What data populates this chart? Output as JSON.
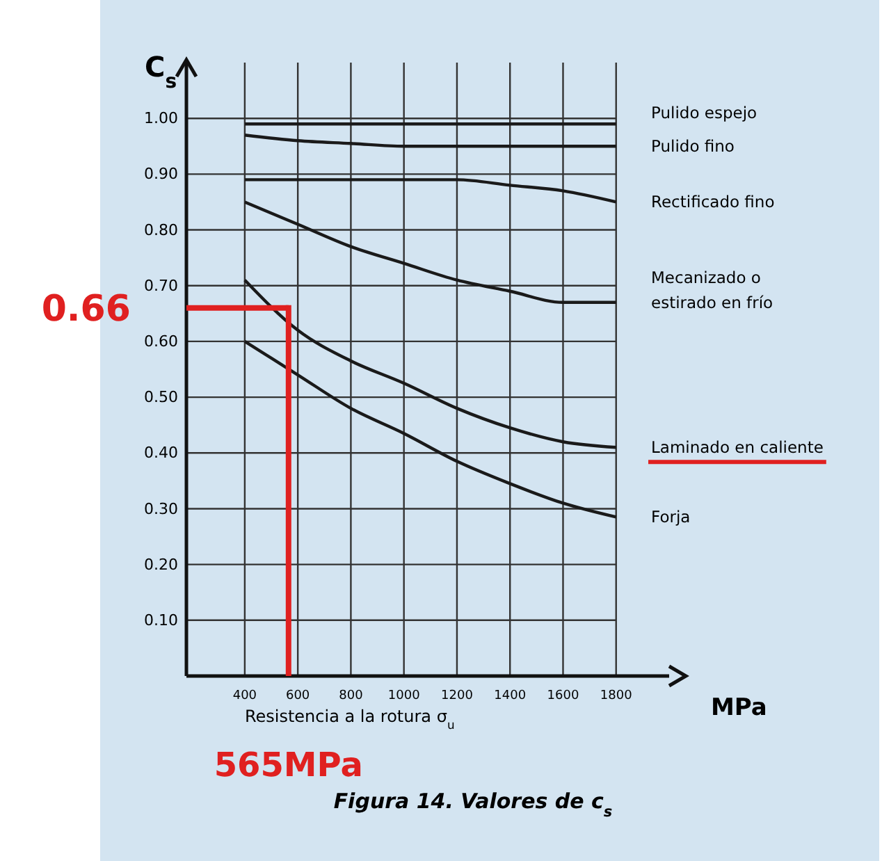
{
  "chart_data": {
    "type": "line",
    "ylabel": "C$_{s}$",
    "xlabel": "Resistencia a la rotura σ$_{u}$",
    "annotations": [
      "MPa",
      "Figura 14. Valores de c$_{s}$"
    ],
    "x": [
      400,
      600,
      800,
      1000,
      1200,
      1400,
      1600,
      1800
    ],
    "xlim": [
      180,
      2000
    ],
    "xticks": [
      400,
      600,
      800,
      1000,
      1200,
      1400,
      1600,
      1800
    ],
    "ylim": [
      0,
      1.1
    ],
    "yticks": [
      {
        "value": 0.1,
        "label": "0.10"
      },
      {
        "value": 0.2,
        "label": "0.20"
      },
      {
        "value": 0.3,
        "label": "0.30"
      },
      {
        "value": 0.4,
        "label": "0.40"
      },
      {
        "value": 0.5,
        "label": "0.50"
      },
      {
        "value": 0.6,
        "label": "0.60"
      },
      {
        "value": 0.7,
        "label": "0.70"
      },
      {
        "value": 0.8,
        "label": "0.80"
      },
      {
        "value": 0.9,
        "label": "0.90"
      },
      {
        "value": 1.0,
        "label": "1.00"
      }
    ],
    "grid": true,
    "legend": false,
    "marker": "none",
    "line_style": "solid",
    "series": [
      {
        "name": "Pulido espejo",
        "color": "#1a1a1a",
        "values": [
          0.99,
          0.99,
          0.99,
          0.99,
          0.99,
          0.99,
          0.99,
          0.99
        ]
      },
      {
        "name": "Pulido fino",
        "color": "#1a1a1a",
        "values": [
          0.97,
          0.96,
          0.955,
          0.95,
          0.95,
          0.95,
          0.95,
          0.95
        ]
      },
      {
        "name": "Rectificado fino",
        "color": "#1a1a1a",
        "values": [
          0.89,
          0.89,
          0.89,
          0.89,
          0.89,
          0.88,
          0.87,
          0.85
        ]
      },
      {
        "name": "Mecanizado o\nestirado en frío",
        "color": "#1a1a1a",
        "values": [
          0.85,
          0.81,
          0.77,
          0.74,
          0.71,
          0.69,
          0.67,
          0.67
        ]
      },
      {
        "name": "Laminado en caliente",
        "color": "#1a1a1a",
        "values": [
          0.71,
          0.62,
          0.565,
          0.525,
          0.48,
          0.445,
          0.42,
          0.41
        ]
      },
      {
        "name": "Forja",
        "color": "#1a1a1a",
        "values": [
          0.6,
          0.54,
          0.48,
          0.435,
          0.385,
          0.345,
          0.31,
          0.285
        ]
      }
    ],
    "ref_lines": [
      {
        "axis": "y",
        "value": 0.66,
        "label": "0.66",
        "color": "#e02020"
      },
      {
        "axis": "x",
        "value": 565,
        "label": "565MPa",
        "color": "#e02020"
      }
    ]
  }
}
